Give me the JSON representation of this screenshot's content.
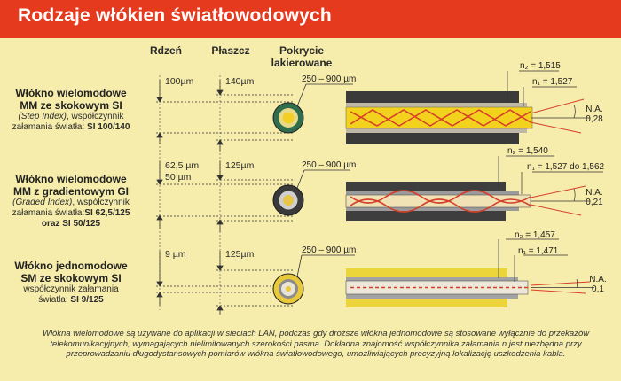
{
  "title": "Rodzaje włókien światłowodowych",
  "headers": {
    "core": "Rdzeń",
    "cladding": "Płaszcz",
    "coating_line1": "Pokrycie",
    "coating_line2": "lakierowane"
  },
  "fibers": [
    {
      "name_line1": "Włókno wielomodowe",
      "name_line2": "MM ze skokowym SI",
      "desc_line1_italic": "(Step Index)",
      "desc_line1_rest": ", współczynnik",
      "desc_line2": "załamania światła:",
      "desc_line2_bold": " SI 100/140",
      "desc_line3": "",
      "core_dim": "100µm",
      "core_dim2": "",
      "cladding_dim": "140µm",
      "coating_range": "250 – 900 µm",
      "n2": "n₂ = 1,515",
      "n1": "n₁ = 1,527",
      "na_label": "N.A.",
      "na_value": "0,28"
    },
    {
      "name_line1": "Włókno wielomodowe",
      "name_line2": "MM z gradientowym GI",
      "desc_line1_italic": "(Graded Index)",
      "desc_line1_rest": ", współczynnik",
      "desc_line2": "załamania światła:",
      "desc_line2_bold": "SI 62,5/125",
      "desc_line3": "oraz SI 50/125",
      "core_dim": "62,5 µm",
      "core_dim2": "50 µm",
      "cladding_dim": "125µm",
      "coating_range": "250 – 900 µm",
      "n2": "n₂ = 1,540",
      "n1": "n₁ = 1,527 do 1,562",
      "na_label": "N.A.",
      "na_value": "0,21"
    },
    {
      "name_line1": "Włókno jednomodowe",
      "name_line2": "SM ze skokowym SI",
      "desc_line1_italic": "",
      "desc_line1_rest": "współczynnik załamania",
      "desc_line2": "światła:",
      "desc_line2_bold": " SI 9/125",
      "desc_line3": "",
      "core_dim": "9 µm",
      "core_dim2": "",
      "cladding_dim": "125µm",
      "coating_range": "250 – 900 µm",
      "n2": "n₂ = 1,457",
      "n1": "n₁ = 1,471",
      "na_label": "N.A.",
      "na_value": "0,1"
    }
  ],
  "footer": "Włókna wielomodowe są używane do aplikacji w sieciach LAN, podczas gdy droższe włókna jednomodowe są stosowane wyłącznie do przekazów telekomunikacyjnych, wymagających nielimitowanych szerokości pasma. Dokładna znajomość współczynnika załamania n jest niezbędna przy przeprowadzaniu długodystansowych pomiarów włókna światłowodowego, umożliwiających precyzyjną lokalizację uszkodzenia kabla.",
  "colors": {
    "title_bar": "#e63a1e",
    "background": "#f6ecab",
    "core_yellow": "#f2d21c",
    "coating_dark": "#3a3a3a",
    "ray_red": "#d6402a"
  }
}
